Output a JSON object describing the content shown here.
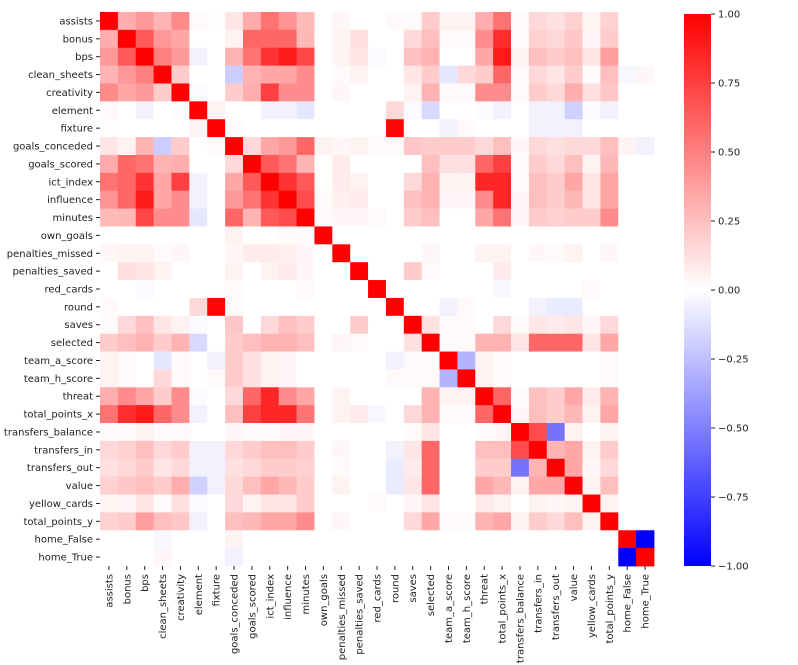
{
  "chart_data": {
    "type": "heatmap",
    "title": "",
    "xlabel": "",
    "ylabel": "",
    "labels": [
      "assists",
      "bonus",
      "bps",
      "clean_sheets",
      "creativity",
      "element",
      "fixture",
      "goals_conceded",
      "goals_scored",
      "ict_index",
      "influence",
      "minutes",
      "own_goals",
      "penalties_missed",
      "penalties_saved",
      "red_cards",
      "round",
      "saves",
      "selected",
      "team_a_score",
      "team_h_score",
      "threat",
      "total_points_x",
      "transfers_balance",
      "transfers_in",
      "transfers_out",
      "value",
      "yellow_cards",
      "total_points_y",
      "home_False",
      "home_True"
    ],
    "values": [
      [
        1.0,
        0.32,
        0.4,
        0.3,
        0.46,
        0.02,
        0.01,
        0.1,
        0.33,
        0.55,
        0.42,
        0.27,
        0.0,
        0.03,
        0.0,
        0.0,
        0.02,
        0.02,
        0.2,
        0.05,
        0.05,
        0.32,
        0.55,
        0.02,
        0.15,
        0.12,
        0.18,
        0.04,
        0.18,
        0.0,
        0.0
      ],
      [
        0.32,
        1.0,
        0.65,
        0.4,
        0.35,
        0.0,
        0.0,
        0.05,
        0.6,
        0.6,
        0.6,
        0.28,
        0.0,
        0.05,
        0.12,
        0.0,
        0.0,
        0.15,
        0.25,
        0.02,
        0.02,
        0.45,
        0.82,
        0.02,
        0.18,
        0.15,
        0.22,
        0.03,
        0.2,
        0.0,
        0.0
      ],
      [
        0.4,
        0.65,
        1.0,
        0.5,
        0.4,
        -0.05,
        0.0,
        0.3,
        0.55,
        0.8,
        0.9,
        0.72,
        0.0,
        0.05,
        0.1,
        -0.02,
        0.0,
        0.25,
        0.3,
        0.0,
        0.0,
        0.35,
        0.9,
        0.05,
        0.25,
        0.2,
        0.25,
        0.1,
        0.38,
        0.0,
        0.0
      ],
      [
        0.3,
        0.4,
        0.5,
        1.0,
        0.2,
        0.0,
        0.0,
        -0.2,
        0.3,
        0.35,
        0.35,
        0.45,
        0.0,
        0.02,
        0.05,
        0.0,
        0.0,
        0.1,
        0.2,
        -0.1,
        0.15,
        0.2,
        0.6,
        0.02,
        0.15,
        0.1,
        0.2,
        0.02,
        0.25,
        -0.03,
        0.03
      ],
      [
        0.46,
        0.35,
        0.4,
        0.2,
        1.0,
        -0.02,
        0.0,
        0.2,
        0.32,
        0.75,
        0.45,
        0.45,
        0.0,
        0.03,
        0.0,
        0.0,
        0.0,
        0.05,
        0.3,
        0.02,
        0.02,
        0.45,
        0.45,
        0.02,
        0.2,
        0.15,
        0.32,
        0.12,
        0.22,
        0.0,
        0.0
      ],
      [
        0.02,
        0.0,
        -0.05,
        0.0,
        -0.02,
        1.0,
        0.05,
        0.0,
        0.0,
        -0.05,
        -0.05,
        -0.1,
        0.0,
        0.0,
        0.0,
        0.0,
        0.15,
        -0.02,
        -0.15,
        0.0,
        0.0,
        -0.02,
        -0.05,
        0.0,
        -0.05,
        -0.05,
        -0.18,
        -0.02,
        -0.05,
        0.0,
        0.0
      ],
      [
        0.01,
        0.0,
        0.0,
        0.0,
        0.0,
        0.05,
        1.0,
        0.02,
        0.0,
        0.0,
        0.0,
        0.0,
        0.0,
        0.0,
        0.0,
        0.0,
        0.98,
        0.0,
        0.0,
        -0.05,
        0.02,
        0.0,
        0.0,
        0.0,
        -0.05,
        -0.05,
        -0.05,
        0.0,
        0.0,
        0.0,
        0.0
      ],
      [
        0.1,
        0.05,
        0.3,
        -0.2,
        0.2,
        0.0,
        0.02,
        1.0,
        0.15,
        0.35,
        0.4,
        0.6,
        0.05,
        0.03,
        0.05,
        0.02,
        0.02,
        0.22,
        0.2,
        0.2,
        0.2,
        0.15,
        0.25,
        0.03,
        0.15,
        0.12,
        0.15,
        0.15,
        0.25,
        0.05,
        -0.05
      ],
      [
        0.33,
        0.6,
        0.55,
        0.3,
        0.32,
        0.0,
        0.0,
        0.15,
        1.0,
        0.65,
        0.55,
        0.3,
        0.0,
        0.08,
        0.0,
        0.0,
        0.0,
        0.0,
        0.25,
        0.12,
        0.12,
        0.6,
        0.75,
        0.02,
        0.2,
        0.15,
        0.25,
        0.05,
        0.28,
        0.0,
        0.0
      ],
      [
        0.55,
        0.6,
        0.8,
        0.35,
        0.75,
        -0.05,
        0.0,
        0.35,
        0.65,
        1.0,
        0.8,
        0.65,
        0.0,
        0.08,
        0.05,
        0.0,
        0.0,
        0.15,
        0.3,
        0.05,
        0.05,
        0.85,
        0.85,
        0.02,
        0.25,
        0.2,
        0.35,
        0.1,
        0.35,
        0.0,
        0.0
      ],
      [
        0.42,
        0.6,
        0.9,
        0.35,
        0.45,
        -0.05,
        0.0,
        0.4,
        0.55,
        0.8,
        1.0,
        0.7,
        0.02,
        0.06,
        0.08,
        0.0,
        0.0,
        0.25,
        0.3,
        0.03,
        0.03,
        0.45,
        0.85,
        0.03,
        0.25,
        0.2,
        0.28,
        0.1,
        0.35,
        0.0,
        0.0
      ],
      [
        0.27,
        0.28,
        0.72,
        0.45,
        0.45,
        -0.1,
        0.0,
        0.6,
        0.3,
        0.65,
        0.7,
        1.0,
        0.02,
        0.03,
        0.03,
        0.02,
        0.0,
        0.2,
        0.25,
        0.0,
        0.0,
        0.35,
        0.55,
        0.03,
        0.2,
        0.18,
        0.2,
        0.2,
        0.45,
        0.0,
        0.0
      ],
      [
        0.0,
        0.0,
        0.0,
        0.0,
        0.0,
        0.0,
        0.0,
        0.05,
        0.0,
        0.0,
        0.02,
        0.02,
        1.0,
        0.0,
        0.0,
        0.0,
        0.0,
        0.0,
        0.0,
        0.0,
        0.0,
        0.0,
        0.0,
        0.0,
        0.0,
        0.0,
        0.0,
        0.0,
        0.0,
        0.0,
        0.0
      ],
      [
        0.03,
        0.05,
        0.05,
        0.02,
        0.03,
        0.0,
        0.0,
        0.03,
        0.08,
        0.08,
        0.06,
        0.03,
        0.0,
        1.0,
        0.0,
        0.0,
        0.0,
        0.0,
        0.03,
        0.0,
        0.0,
        0.05,
        0.05,
        0.0,
        0.03,
        0.02,
        0.05,
        0.0,
        0.03,
        0.0,
        0.0
      ],
      [
        0.0,
        0.12,
        0.1,
        0.05,
        0.0,
        0.0,
        0.0,
        0.05,
        0.0,
        0.05,
        0.08,
        0.03,
        0.0,
        0.0,
        1.0,
        0.0,
        0.0,
        0.2,
        0.02,
        0.0,
        0.0,
        0.0,
        0.08,
        0.0,
        0.0,
        0.0,
        0.0,
        0.0,
        0.0,
        0.0,
        0.0
      ],
      [
        0.0,
        0.0,
        -0.02,
        0.0,
        0.0,
        0.0,
        0.0,
        0.02,
        0.0,
        0.0,
        0.0,
        0.02,
        0.0,
        0.0,
        0.0,
        1.0,
        0.0,
        0.0,
        0.0,
        0.0,
        0.0,
        0.0,
        -0.03,
        0.0,
        0.0,
        0.0,
        0.0,
        0.02,
        0.0,
        0.0,
        0.0
      ],
      [
        0.02,
        0.0,
        0.0,
        0.0,
        0.0,
        0.15,
        0.98,
        0.02,
        0.0,
        0.0,
        0.0,
        0.0,
        0.0,
        0.0,
        0.0,
        0.0,
        1.0,
        0.0,
        0.0,
        -0.05,
        0.02,
        0.0,
        0.0,
        0.0,
        -0.05,
        -0.08,
        -0.08,
        0.0,
        0.0,
        0.0,
        0.0
      ],
      [
        0.02,
        0.15,
        0.25,
        0.1,
        0.05,
        -0.02,
        0.0,
        0.22,
        0.0,
        0.15,
        0.25,
        0.2,
        0.0,
        0.0,
        0.2,
        0.0,
        0.0,
        1.0,
        0.12,
        0.02,
        0.02,
        0.0,
        0.15,
        0.02,
        0.1,
        0.08,
        0.1,
        0.03,
        0.15,
        0.0,
        0.0
      ],
      [
        0.2,
        0.25,
        0.3,
        0.2,
        0.3,
        -0.15,
        0.0,
        0.2,
        0.25,
        0.3,
        0.3,
        0.25,
        0.0,
        0.03,
        0.02,
        0.0,
        0.0,
        0.12,
        1.0,
        0.02,
        0.02,
        0.3,
        0.3,
        0.1,
        0.6,
        0.6,
        0.6,
        0.1,
        0.35,
        0.0,
        0.0
      ],
      [
        0.05,
        0.02,
        0.0,
        -0.1,
        0.02,
        0.0,
        -0.05,
        0.2,
        0.12,
        0.05,
        0.03,
        0.0,
        0.0,
        0.0,
        0.0,
        0.0,
        -0.05,
        0.02,
        0.02,
        1.0,
        -0.3,
        0.05,
        0.02,
        0.0,
        0.0,
        0.0,
        0.0,
        0.0,
        0.02,
        0.0,
        0.0
      ],
      [
        0.05,
        0.02,
        0.0,
        0.15,
        0.02,
        0.0,
        0.02,
        0.2,
        0.12,
        0.05,
        0.03,
        0.0,
        0.0,
        0.0,
        0.0,
        0.0,
        0.02,
        0.02,
        0.02,
        -0.3,
        1.0,
        0.05,
        0.02,
        0.0,
        0.0,
        0.0,
        0.0,
        0.0,
        0.02,
        0.0,
        0.0
      ],
      [
        0.32,
        0.45,
        0.35,
        0.2,
        0.45,
        -0.02,
        0.0,
        0.15,
        0.6,
        0.85,
        0.45,
        0.35,
        0.0,
        0.05,
        0.0,
        0.0,
        0.0,
        0.0,
        0.3,
        0.05,
        0.05,
        1.0,
        0.6,
        0.02,
        0.25,
        0.2,
        0.35,
        0.08,
        0.3,
        0.0,
        0.0
      ],
      [
        0.55,
        0.82,
        0.9,
        0.6,
        0.45,
        -0.05,
        0.0,
        0.25,
        0.75,
        0.85,
        0.85,
        0.55,
        0.0,
        0.05,
        0.08,
        -0.03,
        0.0,
        0.15,
        0.3,
        0.02,
        0.02,
        0.6,
        1.0,
        0.03,
        0.25,
        0.2,
        0.28,
        0.05,
        0.35,
        0.0,
        0.0
      ],
      [
        0.02,
        0.02,
        0.05,
        0.02,
        0.02,
        0.0,
        0.0,
        0.03,
        0.02,
        0.02,
        0.03,
        0.03,
        0.0,
        0.0,
        0.0,
        0.0,
        0.0,
        0.02,
        0.1,
        0.0,
        0.0,
        0.02,
        0.03,
        1.0,
        0.7,
        -0.55,
        0.05,
        0.0,
        0.05,
        0.0,
        0.0
      ],
      [
        0.15,
        0.18,
        0.25,
        0.15,
        0.2,
        -0.05,
        -0.05,
        0.15,
        0.2,
        0.25,
        0.25,
        0.2,
        0.0,
        0.03,
        0.0,
        0.0,
        -0.05,
        0.1,
        0.6,
        0.0,
        0.0,
        0.25,
        0.25,
        0.7,
        1.0,
        0.3,
        0.35,
        0.05,
        0.2,
        0.0,
        0.0
      ],
      [
        0.12,
        0.15,
        0.2,
        0.1,
        0.15,
        -0.05,
        -0.05,
        0.12,
        0.15,
        0.2,
        0.2,
        0.18,
        0.0,
        0.02,
        0.0,
        0.0,
        -0.08,
        0.08,
        0.6,
        0.0,
        0.0,
        0.2,
        0.2,
        -0.55,
        0.3,
        1.0,
        0.35,
        0.03,
        0.15,
        0.0,
        0.0
      ],
      [
        0.18,
        0.22,
        0.25,
        0.2,
        0.32,
        -0.18,
        -0.05,
        0.15,
        0.25,
        0.35,
        0.28,
        0.2,
        0.0,
        0.05,
        0.0,
        0.0,
        -0.08,
        0.1,
        0.6,
        0.0,
        0.0,
        0.35,
        0.28,
        0.05,
        0.35,
        0.35,
        1.0,
        0.05,
        0.25,
        0.0,
        0.0
      ],
      [
        0.04,
        0.03,
        0.1,
        0.02,
        0.12,
        -0.02,
        0.0,
        0.15,
        0.05,
        0.1,
        0.1,
        0.2,
        0.0,
        0.0,
        0.0,
        0.02,
        0.0,
        0.03,
        0.1,
        0.0,
        0.0,
        0.08,
        0.05,
        0.0,
        0.05,
        0.03,
        0.05,
        1.0,
        0.05,
        0.0,
        0.0
      ],
      [
        0.18,
        0.2,
        0.38,
        0.25,
        0.22,
        -0.05,
        0.0,
        0.25,
        0.28,
        0.35,
        0.35,
        0.45,
        0.0,
        0.03,
        0.0,
        0.0,
        0.0,
        0.15,
        0.35,
        0.02,
        0.02,
        0.3,
        0.35,
        0.05,
        0.2,
        0.15,
        0.25,
        0.05,
        1.0,
        0.0,
        0.0
      ],
      [
        0.0,
        0.0,
        0.0,
        -0.03,
        0.0,
        0.0,
        0.0,
        0.05,
        0.0,
        0.0,
        0.0,
        0.0,
        0.0,
        0.0,
        0.0,
        0.0,
        0.0,
        0.0,
        0.0,
        0.0,
        0.0,
        0.0,
        0.0,
        0.0,
        0.0,
        0.0,
        0.0,
        0.0,
        0.0,
        1.0,
        -1.0
      ],
      [
        0.0,
        0.0,
        0.0,
        0.03,
        0.0,
        0.0,
        0.0,
        -0.05,
        0.0,
        0.0,
        0.0,
        0.0,
        0.0,
        0.0,
        0.0,
        0.0,
        0.0,
        0.0,
        0.0,
        0.0,
        0.0,
        0.0,
        0.0,
        0.0,
        0.0,
        0.0,
        0.0,
        0.0,
        0.0,
        -1.0,
        1.0
      ]
    ],
    "colormap": {
      "name": "bwr",
      "low": "#0000ff",
      "mid": "#ffffff",
      "high": "#ff0000"
    },
    "vmin": -1.0,
    "vmax": 1.0,
    "colorbar": {
      "ticks": [
        1.0,
        0.75,
        0.5,
        0.25,
        0.0,
        -0.25,
        -0.5,
        -0.75,
        -1.0
      ],
      "tick_labels": [
        "1.00",
        "0.75",
        "0.50",
        "0.25",
        "0.00",
        "−0.25",
        "−0.50",
        "−0.75",
        "−1.00"
      ]
    },
    "grid": false,
    "legend": "colorbar-right"
  }
}
